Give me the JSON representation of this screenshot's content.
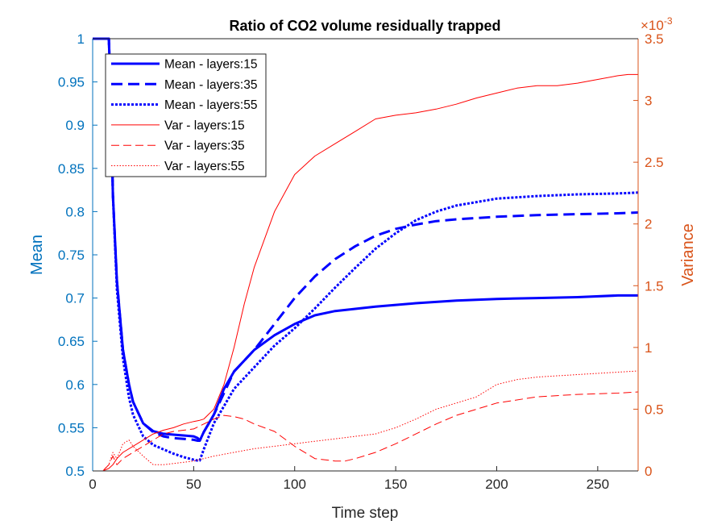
{
  "chart_data": {
    "type": "line",
    "title": "Ratio of CO2 volume residually trapped",
    "xlabel": "Time step",
    "ylabel_left": "Mean",
    "ylabel_right": "Variance",
    "right_axis_exponent": "×10",
    "right_axis_exponent_power": "-3",
    "xlim": [
      0,
      270
    ],
    "ylim_left": [
      0.5,
      1.0
    ],
    "ylim_right": [
      0,
      3.5
    ],
    "xticks": [
      "0",
      "50",
      "100",
      "150",
      "200",
      "250"
    ],
    "yticks_left": [
      "0.5",
      "0.55",
      "0.6",
      "0.65",
      "0.7",
      "0.75",
      "0.8",
      "0.85",
      "0.9",
      "0.95",
      "1"
    ],
    "yticks_right": [
      "0",
      "0.5",
      "1",
      "1.5",
      "2",
      "2.5",
      "3",
      "3.5"
    ],
    "legend_position": "top-left",
    "colors": {
      "mean": "#0000FF",
      "var": "#FF0000",
      "left_axis": "#0072BD",
      "right_axis": "#D95319"
    },
    "series": [
      {
        "name": "Mean - layers:15",
        "axis": "left",
        "style": "solid",
        "color": "#0000FF",
        "x": [
          0,
          7,
          8,
          9,
          10,
          12,
          15,
          18,
          20,
          25,
          30,
          35,
          40,
          45,
          50,
          52,
          53,
          55,
          60,
          65,
          70,
          80,
          90,
          100,
          110,
          120,
          140,
          160,
          180,
          200,
          220,
          240,
          260,
          270
        ],
        "y": [
          1,
          1,
          1,
          0.93,
          0.82,
          0.72,
          0.64,
          0.6,
          0.58,
          0.555,
          0.546,
          0.543,
          0.542,
          0.541,
          0.54,
          0.538,
          0.535,
          0.545,
          0.565,
          0.595,
          0.615,
          0.64,
          0.657,
          0.67,
          0.68,
          0.685,
          0.69,
          0.694,
          0.697,
          0.699,
          0.7,
          0.701,
          0.703,
          0.703
        ]
      },
      {
        "name": "Mean - layers:35",
        "axis": "left",
        "style": "dashed",
        "color": "#0000FF",
        "x": [
          0,
          7,
          8,
          9,
          10,
          12,
          15,
          18,
          20,
          25,
          30,
          35,
          40,
          45,
          50,
          52,
          53,
          55,
          60,
          65,
          70,
          80,
          90,
          100,
          110,
          120,
          130,
          140,
          150,
          160,
          170,
          180,
          200,
          220,
          240,
          260,
          270
        ],
        "y": [
          1,
          1,
          1,
          0.93,
          0.82,
          0.72,
          0.64,
          0.6,
          0.58,
          0.555,
          0.545,
          0.54,
          0.538,
          0.537,
          0.536,
          0.535,
          0.535,
          0.545,
          0.565,
          0.59,
          0.615,
          0.64,
          0.67,
          0.7,
          0.725,
          0.745,
          0.76,
          0.772,
          0.78,
          0.785,
          0.789,
          0.791,
          0.794,
          0.796,
          0.797,
          0.798,
          0.799
        ]
      },
      {
        "name": "Mean - layers:55",
        "axis": "left",
        "style": "dotted",
        "color": "#0000FF",
        "x": [
          0,
          7,
          8,
          9,
          10,
          12,
          15,
          18,
          20,
          25,
          30,
          35,
          40,
          45,
          50,
          52,
          53,
          55,
          60,
          65,
          70,
          80,
          90,
          100,
          110,
          120,
          130,
          140,
          150,
          160,
          170,
          180,
          200,
          220,
          240,
          260,
          270
        ],
        "y": [
          1,
          1,
          1,
          0.93,
          0.82,
          0.71,
          0.63,
          0.585,
          0.565,
          0.54,
          0.53,
          0.525,
          0.52,
          0.516,
          0.513,
          0.512,
          0.512,
          0.525,
          0.555,
          0.575,
          0.595,
          0.62,
          0.645,
          0.665,
          0.688,
          0.712,
          0.735,
          0.757,
          0.775,
          0.79,
          0.8,
          0.807,
          0.815,
          0.818,
          0.82,
          0.821,
          0.822
        ]
      },
      {
        "name": "Var - layers:15",
        "axis": "right",
        "style": "solid",
        "color": "#FF0000",
        "x": [
          0,
          5,
          8,
          10,
          12,
          15,
          20,
          25,
          30,
          35,
          40,
          45,
          50,
          53,
          55,
          60,
          65,
          70,
          75,
          80,
          90,
          100,
          110,
          120,
          130,
          140,
          150,
          160,
          170,
          180,
          190,
          200,
          210,
          220,
          230,
          240,
          250,
          260,
          265,
          270
        ],
        "y": [
          0,
          0,
          0.02,
          0.05,
          0.1,
          0.15,
          0.2,
          0.25,
          0.3,
          0.33,
          0.35,
          0.38,
          0.4,
          0.41,
          0.42,
          0.5,
          0.7,
          1.0,
          1.35,
          1.65,
          2.1,
          2.4,
          2.55,
          2.65,
          2.75,
          2.85,
          2.88,
          2.9,
          2.93,
          2.97,
          3.02,
          3.06,
          3.1,
          3.12,
          3.12,
          3.14,
          3.17,
          3.2,
          3.21,
          3.21
        ]
      },
      {
        "name": "Var - layers:35",
        "axis": "right",
        "style": "dashed",
        "color": "#FF0000",
        "x": [
          0,
          5,
          8,
          10,
          12,
          15,
          20,
          25,
          30,
          35,
          40,
          45,
          50,
          55,
          60,
          65,
          70,
          75,
          80,
          90,
          100,
          110,
          120,
          125,
          130,
          140,
          150,
          160,
          170,
          180,
          200,
          220,
          240,
          260,
          270
        ],
        "y": [
          0,
          0,
          0.05,
          0.12,
          0.05,
          0.1,
          0.15,
          0.2,
          0.25,
          0.3,
          0.32,
          0.33,
          0.34,
          0.38,
          0.42,
          0.45,
          0.44,
          0.42,
          0.38,
          0.32,
          0.2,
          0.1,
          0.08,
          0.08,
          0.1,
          0.15,
          0.22,
          0.3,
          0.38,
          0.45,
          0.55,
          0.6,
          0.62,
          0.63,
          0.64
        ]
      },
      {
        "name": "Var - layers:55",
        "axis": "right",
        "style": "dotted",
        "color": "#FF0000",
        "x": [
          0,
          5,
          8,
          10,
          12,
          15,
          18,
          20,
          25,
          30,
          35,
          40,
          45,
          50,
          55,
          60,
          70,
          80,
          90,
          100,
          110,
          120,
          130,
          140,
          150,
          160,
          170,
          180,
          190,
          200,
          210,
          220,
          240,
          260,
          270
        ],
        "y": [
          0,
          0,
          0.05,
          0.15,
          0.1,
          0.22,
          0.25,
          0.2,
          0.12,
          0.05,
          0.05,
          0.06,
          0.07,
          0.08,
          0.1,
          0.12,
          0.15,
          0.18,
          0.2,
          0.22,
          0.24,
          0.26,
          0.28,
          0.3,
          0.35,
          0.42,
          0.5,
          0.55,
          0.6,
          0.7,
          0.74,
          0.76,
          0.78,
          0.8,
          0.81
        ]
      }
    ]
  }
}
